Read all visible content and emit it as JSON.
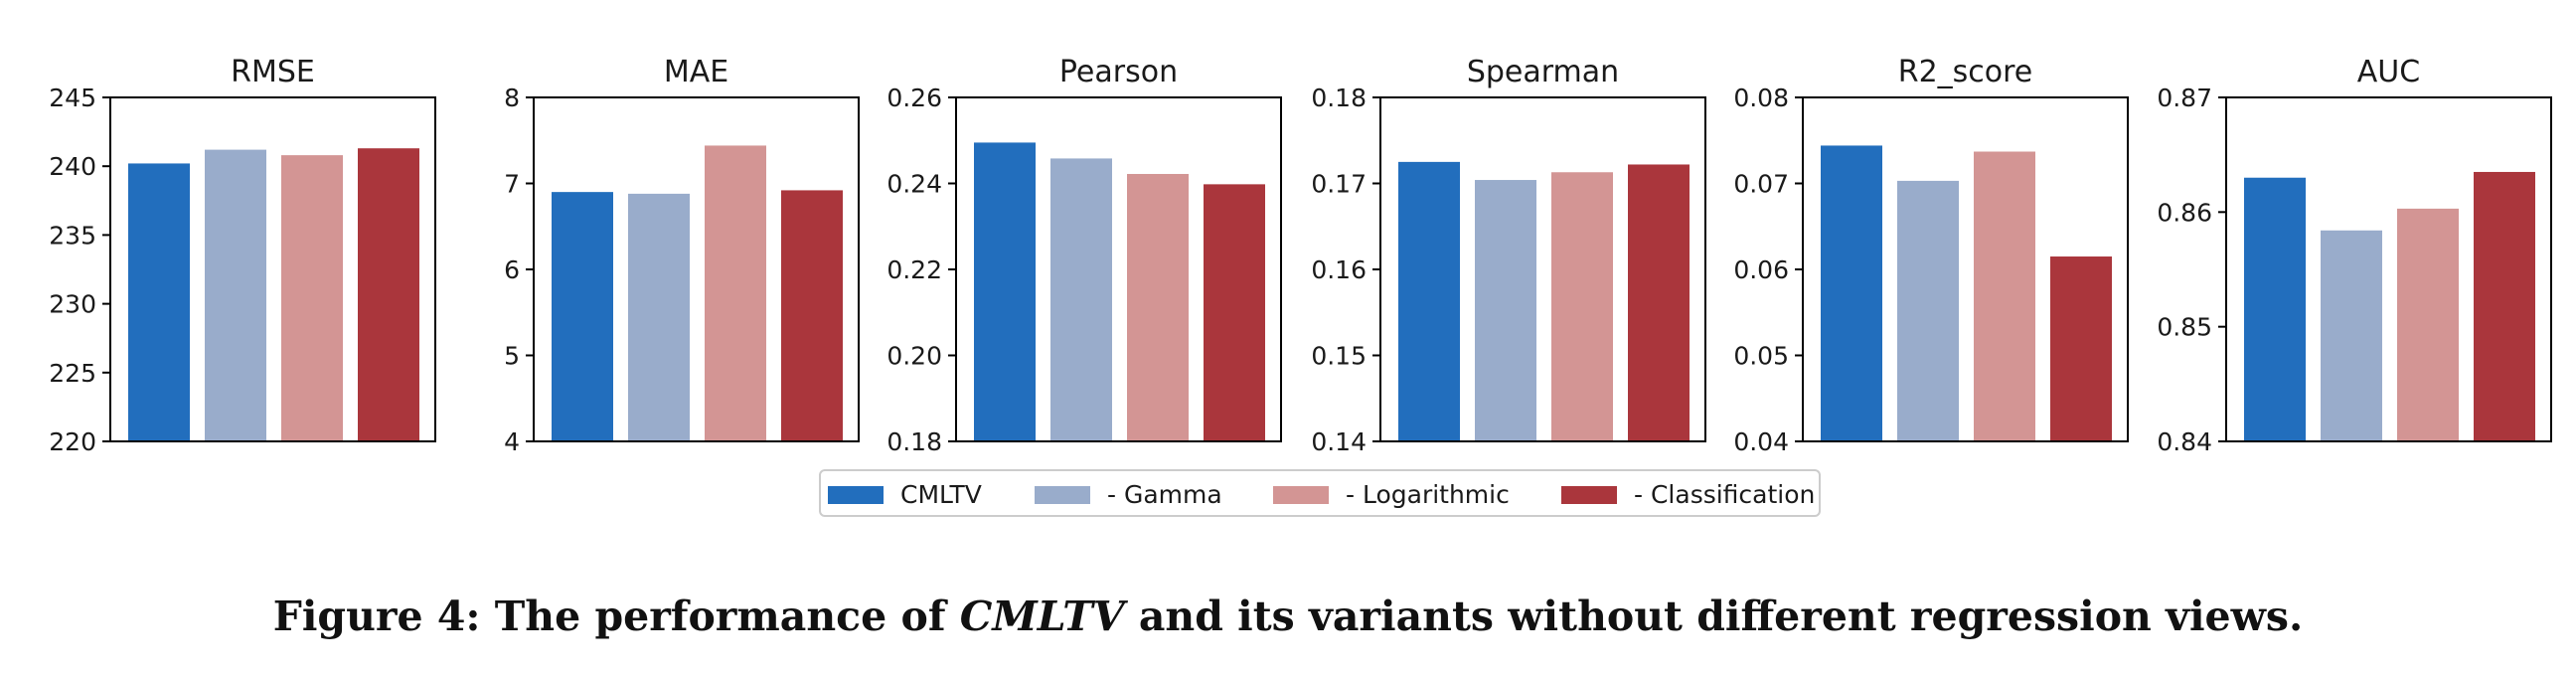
{
  "chart_data": {
    "type": "bar",
    "categories": [
      "CMLTV",
      "- Gamma",
      "- Logarithmic",
      "- Classification"
    ],
    "colors": [
      "#226ebd",
      "#99accb",
      "#d39594",
      "#aa363c"
    ],
    "legend": {
      "entries": [
        "CMLTV",
        "- Gamma",
        "- Logarithmic",
        "- Classification"
      ],
      "placement": "bottom-center"
    },
    "subplots": [
      {
        "title": "RMSE",
        "ylim": [
          220,
          245
        ],
        "ticks": [
          220,
          225,
          230,
          235,
          240,
          245
        ],
        "tick_labels": [
          "220",
          "225",
          "230",
          "235",
          "240",
          "245"
        ],
        "values": [
          240.2,
          241.2,
          240.8,
          241.3
        ]
      },
      {
        "title": "MAE",
        "ylim": [
          4,
          8
        ],
        "ticks": [
          4,
          5,
          6,
          7,
          8
        ],
        "tick_labels": [
          "4",
          "5",
          "6",
          "7",
          "8"
        ],
        "values": [
          6.9,
          6.88,
          7.44,
          6.92
        ]
      },
      {
        "title": "Pearson",
        "ylim": [
          0.18,
          0.26
        ],
        "ticks": [
          0.18,
          0.2,
          0.22,
          0.24,
          0.26
        ],
        "tick_labels": [
          "0.18",
          "0.20",
          "0.22",
          "0.24",
          "0.26"
        ],
        "values": [
          0.2495,
          0.2458,
          0.2422,
          0.2398
        ]
      },
      {
        "title": "Spearman",
        "ylim": [
          0.14,
          0.18
        ],
        "ticks": [
          0.14,
          0.15,
          0.16,
          0.17,
          0.18
        ],
        "tick_labels": [
          "0.14",
          "0.15",
          "0.16",
          "0.17",
          "0.18"
        ],
        "values": [
          0.1725,
          0.1704,
          0.1713,
          0.1722
        ]
      },
      {
        "title": "R2_score",
        "ylim": [
          0.04,
          0.08
        ],
        "ticks": [
          0.04,
          0.05,
          0.06,
          0.07,
          0.08
        ],
        "tick_labels": [
          "0.04",
          "0.05",
          "0.06",
          "0.07",
          "0.08"
        ],
        "values": [
          0.0744,
          0.0703,
          0.0737,
          0.0615
        ]
      },
      {
        "title": "AUC",
        "ylim": [
          0.84,
          0.87
        ],
        "ticks": [
          0.84,
          0.85,
          0.86,
          0.87
        ],
        "tick_labels": [
          "0.84",
          "0.85",
          "0.86",
          "0.87"
        ],
        "values": [
          0.863,
          0.8584,
          0.8603,
          0.8635
        ]
      }
    ]
  },
  "caption": {
    "prefix": "Figure 4: The performance of ",
    "emphasis": "CMLTV",
    "suffix": " and its variants without different regression views."
  }
}
